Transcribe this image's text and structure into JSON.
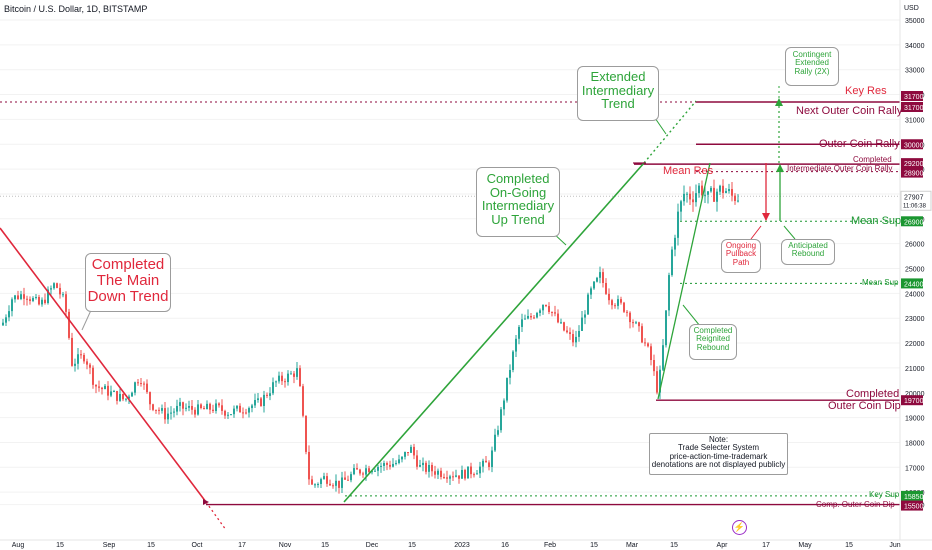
{
  "header": {
    "title": "Bitcoin / U.S. Dollar, 1D, BITSTAMP"
  },
  "chart_data": {
    "type": "candlestick",
    "symbol": "Bitcoin / U.S. Dollar",
    "interval": "1D",
    "exchange": "BITSTAMP",
    "currency_label": "USD",
    "ylim": [
      15000,
      35500
    ],
    "y_ticks": [
      15500,
      16000,
      17000,
      18000,
      19000,
      20000,
      21000,
      22000,
      23000,
      24000,
      25000,
      26000,
      27000,
      28000,
      29000,
      30000,
      31000,
      32000,
      33000,
      34000,
      35000
    ],
    "x_ticks": [
      "Aug",
      "15",
      "Sep",
      "15",
      "Oct",
      "17",
      "Nov",
      "15",
      "Dec",
      "15",
      "2023",
      "16",
      "Feb",
      "15",
      "Mar",
      "15",
      "Apr",
      "17",
      "May",
      "15",
      "Jun"
    ],
    "price_path": [
      [
        0,
        22500
      ],
      [
        12,
        23800
      ],
      [
        25,
        24000
      ],
      [
        40,
        23500
      ],
      [
        55,
        24400
      ],
      [
        65,
        23600
      ],
      [
        72,
        21200
      ],
      [
        85,
        21500
      ],
      [
        95,
        20300
      ],
      [
        110,
        20000
      ],
      [
        125,
        19700
      ],
      [
        140,
        20700
      ],
      [
        150,
        19600
      ],
      [
        165,
        19100
      ],
      [
        180,
        19400
      ],
      [
        200,
        19300
      ],
      [
        215,
        19400
      ],
      [
        230,
        19200
      ],
      [
        245,
        19400
      ],
      [
        260,
        19600
      ],
      [
        275,
        20400
      ],
      [
        290,
        20700
      ],
      [
        298,
        20900
      ],
      [
        304,
        18500
      ],
      [
        310,
        16200
      ],
      [
        325,
        16600
      ],
      [
        340,
        16300
      ],
      [
        355,
        16800
      ],
      [
        370,
        17000
      ],
      [
        385,
        17100
      ],
      [
        400,
        17200
      ],
      [
        410,
        17800
      ],
      [
        420,
        17000
      ],
      [
        440,
        16800
      ],
      [
        460,
        16700
      ],
      [
        475,
        16900
      ],
      [
        490,
        17200
      ],
      [
        500,
        19000
      ],
      [
        510,
        21000
      ],
      [
        520,
        22800
      ],
      [
        530,
        23000
      ],
      [
        545,
        23700
      ],
      [
        560,
        22700
      ],
      [
        575,
        22000
      ],
      [
        590,
        24000
      ],
      [
        600,
        24700
      ],
      [
        610,
        23800
      ],
      [
        625,
        23400
      ],
      [
        640,
        22400
      ],
      [
        650,
        21500
      ],
      [
        658,
        20000
      ],
      [
        664,
        22200
      ],
      [
        670,
        25200
      ],
      [
        677,
        27000
      ],
      [
        684,
        28000
      ],
      [
        692,
        27900
      ],
      [
        700,
        28300
      ],
      [
        708,
        27800
      ],
      [
        716,
        28100
      ],
      [
        724,
        28200
      ],
      [
        732,
        27900
      ],
      [
        740,
        27907
      ]
    ],
    "last_price": 27907,
    "countdown": "11:06:38",
    "levels": [
      {
        "name": "Key Res",
        "value": 31700,
        "color": "#8e0a3e"
      },
      {
        "name": "Next Outer Coin Rally",
        "value": 31700,
        "color": "#8e0a3e"
      },
      {
        "name": "Outer Coin Rally",
        "value": 30000,
        "color": "#8e0a3e"
      },
      {
        "name": "Completed Intermediate Outer Coin Rally",
        "value": 29200,
        "color": "#8e0a3e"
      },
      {
        "name": "Mean Res",
        "value": 28900,
        "color": "#8e0a3e"
      },
      {
        "name": "Mean Sup",
        "value": 26900,
        "color": "#1a9630"
      },
      {
        "name": "Mean Sup",
        "value": 24400,
        "color": "#1a9630"
      },
      {
        "name": "Completed Outer Coin Dip",
        "value": 19700,
        "color": "#8e0a3e"
      },
      {
        "name": "Key Sup",
        "value": 15850,
        "color": "#1a9630"
      },
      {
        "name": "Comp. Outer Coin Dip",
        "value": 15500,
        "color": "#8e0a3e"
      }
    ],
    "price_tags": [
      "31700",
      "31700",
      "30000",
      "29200",
      "28900",
      "27907",
      "26900",
      "24400",
      "19700",
      "15850",
      "15500"
    ]
  },
  "annotations": {
    "down_trend": [
      "Completed",
      "The Main",
      "Down Trend"
    ],
    "up_trend": [
      "Completed",
      "On-Going",
      "Intermediary",
      "Up Trend"
    ],
    "extended": [
      "Extended",
      "Intermediary",
      "Trend"
    ],
    "contingent": [
      "Contingent",
      "Extended",
      "Rally (2X)"
    ],
    "pullback": [
      "Ongoing",
      "Pullback",
      "Path"
    ],
    "rebound": [
      "Anticipated",
      "Rebound"
    ],
    "reignited": [
      "Completed",
      "Reignited",
      "Rebound"
    ],
    "note_title": "Note:",
    "note_lines": [
      "Trade Selecter System",
      "price-action-time-trademark",
      "denotations are not displayed publicly"
    ]
  },
  "labels": {
    "key_res": "Key Res",
    "next_outer": "Next Outer Coin Rally",
    "outer_rally": "Outer Coin Rally",
    "completed": "Completed",
    "intermediate": "Intermediate Outer Coin Rally",
    "mean_res": "Mean Res",
    "mean_sup_big": "Mean Sup",
    "mean_sup_small": "Mean Sup",
    "completed_dip_1": "Completed",
    "completed_dip_2": "Outer Coin Dip",
    "key_sup": "Key Sup",
    "comp_dip": "Comp. Outer Coin Dip"
  },
  "logo_glyph": "⚡"
}
